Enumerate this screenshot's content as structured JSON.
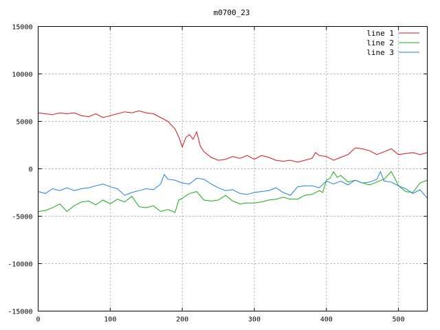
{
  "chart_data": {
    "type": "line",
    "title": "m0700_23",
    "xlabel": "",
    "ylabel": "",
    "xlim": [
      0,
      540
    ],
    "ylim": [
      -15000,
      15000
    ],
    "x_ticks": [
      0,
      100,
      200,
      300,
      400,
      500
    ],
    "y_ticks": [
      -15000,
      -10000,
      -5000,
      0,
      5000,
      10000,
      15000
    ],
    "grid": true,
    "legend_position": "top-right",
    "series": [
      {
        "name": "line 1",
        "color": "#e0101a",
        "points": [
          [
            0,
            5900
          ],
          [
            10,
            5800
          ],
          [
            20,
            5700
          ],
          [
            30,
            5900
          ],
          [
            40,
            5800
          ],
          [
            50,
            5900
          ],
          [
            60,
            5600
          ],
          [
            70,
            5500
          ],
          [
            80,
            5800
          ],
          [
            90,
            5400
          ],
          [
            100,
            5600
          ],
          [
            110,
            5800
          ],
          [
            120,
            6000
          ],
          [
            130,
            5900
          ],
          [
            140,
            6100
          ],
          [
            150,
            5900
          ],
          [
            160,
            5800
          ],
          [
            170,
            5400
          ],
          [
            180,
            5000
          ],
          [
            190,
            4200
          ],
          [
            196,
            3200
          ],
          [
            200,
            2300
          ],
          [
            205,
            3300
          ],
          [
            210,
            3600
          ],
          [
            215,
            3100
          ],
          [
            220,
            3900
          ],
          [
            225,
            2400
          ],
          [
            230,
            1800
          ],
          [
            240,
            1200
          ],
          [
            250,
            900
          ],
          [
            260,
            1000
          ],
          [
            270,
            1300
          ],
          [
            280,
            1100
          ],
          [
            290,
            1400
          ],
          [
            300,
            1000
          ],
          [
            310,
            1400
          ],
          [
            320,
            1200
          ],
          [
            330,
            900
          ],
          [
            340,
            800
          ],
          [
            350,
            900
          ],
          [
            360,
            700
          ],
          [
            370,
            900
          ],
          [
            380,
            1100
          ],
          [
            385,
            1700
          ],
          [
            390,
            1400
          ],
          [
            400,
            1300
          ],
          [
            410,
            900
          ],
          [
            420,
            1200
          ],
          [
            430,
            1500
          ],
          [
            440,
            2200
          ],
          [
            450,
            2100
          ],
          [
            460,
            1900
          ],
          [
            470,
            1500
          ],
          [
            480,
            1800
          ],
          [
            490,
            2100
          ],
          [
            500,
            1500
          ],
          [
            510,
            1600
          ],
          [
            520,
            1700
          ],
          [
            530,
            1500
          ],
          [
            540,
            1700
          ]
        ]
      },
      {
        "name": "line 2",
        "color": "#10b010",
        "points": [
          [
            0,
            -4500
          ],
          [
            10,
            -4400
          ],
          [
            20,
            -4100
          ],
          [
            30,
            -3700
          ],
          [
            40,
            -4500
          ],
          [
            50,
            -3900
          ],
          [
            60,
            -3500
          ],
          [
            70,
            -3400
          ],
          [
            80,
            -3800
          ],
          [
            90,
            -3300
          ],
          [
            100,
            -3700
          ],
          [
            110,
            -3200
          ],
          [
            120,
            -3500
          ],
          [
            130,
            -2900
          ],
          [
            140,
            -4000
          ],
          [
            150,
            -4100
          ],
          [
            160,
            -3900
          ],
          [
            170,
            -4500
          ],
          [
            180,
            -4300
          ],
          [
            190,
            -4600
          ],
          [
            195,
            -3300
          ],
          [
            200,
            -3100
          ],
          [
            210,
            -2600
          ],
          [
            220,
            -2400
          ],
          [
            230,
            -3300
          ],
          [
            240,
            -3400
          ],
          [
            250,
            -3300
          ],
          [
            260,
            -2800
          ],
          [
            270,
            -3400
          ],
          [
            280,
            -3700
          ],
          [
            290,
            -3600
          ],
          [
            300,
            -3600
          ],
          [
            310,
            -3500
          ],
          [
            320,
            -3300
          ],
          [
            330,
            -3200
          ],
          [
            340,
            -3000
          ],
          [
            350,
            -3200
          ],
          [
            360,
            -3200
          ],
          [
            370,
            -2800
          ],
          [
            380,
            -2700
          ],
          [
            390,
            -2300
          ],
          [
            395,
            -2500
          ],
          [
            400,
            -1200
          ],
          [
            405,
            -1000
          ],
          [
            410,
            -300
          ],
          [
            415,
            -900
          ],
          [
            420,
            -700
          ],
          [
            430,
            -1400
          ],
          [
            440,
            -1200
          ],
          [
            450,
            -1500
          ],
          [
            460,
            -1700
          ],
          [
            470,
            -1400
          ],
          [
            480,
            -1100
          ],
          [
            490,
            -300
          ],
          [
            495,
            -1000
          ],
          [
            500,
            -1800
          ],
          [
            510,
            -2400
          ],
          [
            520,
            -2500
          ],
          [
            530,
            -1500
          ],
          [
            540,
            -1200
          ]
        ]
      },
      {
        "name": "line 3",
        "color": "#2080e0",
        "points": [
          [
            0,
            -2400
          ],
          [
            10,
            -2600
          ],
          [
            20,
            -2100
          ],
          [
            30,
            -2300
          ],
          [
            40,
            -2000
          ],
          [
            50,
            -2300
          ],
          [
            60,
            -2100
          ],
          [
            70,
            -2000
          ],
          [
            80,
            -1800
          ],
          [
            90,
            -1600
          ],
          [
            100,
            -1900
          ],
          [
            110,
            -2100
          ],
          [
            120,
            -2800
          ],
          [
            130,
            -2500
          ],
          [
            140,
            -2300
          ],
          [
            150,
            -2100
          ],
          [
            160,
            -2200
          ],
          [
            170,
            -1600
          ],
          [
            175,
            -600
          ],
          [
            180,
            -1100
          ],
          [
            190,
            -1200
          ],
          [
            200,
            -1500
          ],
          [
            210,
            -1600
          ],
          [
            220,
            -1000
          ],
          [
            230,
            -1100
          ],
          [
            240,
            -1600
          ],
          [
            250,
            -2000
          ],
          [
            260,
            -2300
          ],
          [
            270,
            -2200
          ],
          [
            280,
            -2600
          ],
          [
            290,
            -2700
          ],
          [
            300,
            -2500
          ],
          [
            310,
            -2400
          ],
          [
            320,
            -2300
          ],
          [
            330,
            -2000
          ],
          [
            340,
            -2500
          ],
          [
            350,
            -2800
          ],
          [
            360,
            -1900
          ],
          [
            370,
            -1800
          ],
          [
            380,
            -1800
          ],
          [
            390,
            -2000
          ],
          [
            400,
            -1300
          ],
          [
            410,
            -1600
          ],
          [
            420,
            -1300
          ],
          [
            430,
            -1700
          ],
          [
            440,
            -1200
          ],
          [
            450,
            -1500
          ],
          [
            460,
            -1400
          ],
          [
            470,
            -1100
          ],
          [
            475,
            -300
          ],
          [
            480,
            -1300
          ],
          [
            490,
            -1400
          ],
          [
            500,
            -1800
          ],
          [
            510,
            -2100
          ],
          [
            520,
            -2600
          ],
          [
            530,
            -2200
          ],
          [
            540,
            -3100
          ]
        ]
      }
    ]
  }
}
